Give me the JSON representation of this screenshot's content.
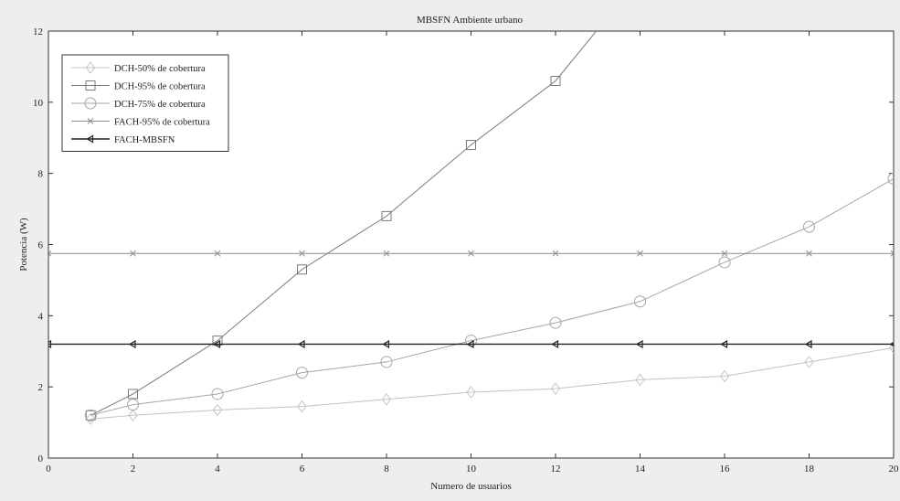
{
  "chart_data": {
    "type": "line",
    "title": "MBSFN Ambiente urbano",
    "xlabel": "Numero de usuarios",
    "ylabel": "Potencia (W)",
    "xlim": [
      0,
      20
    ],
    "ylim": [
      0,
      12
    ],
    "xticks": [
      0,
      2,
      4,
      6,
      8,
      10,
      12,
      14,
      16,
      18,
      20
    ],
    "yticks": [
      0,
      2,
      4,
      6,
      8,
      10,
      12
    ],
    "grid": false,
    "legend_position": "top-left",
    "series": [
      {
        "name": "DCH-50% de cobertura",
        "marker": "diamond",
        "color": "#c4c4c4",
        "x": [
          1,
          2,
          4,
          6,
          8,
          10,
          12,
          14,
          16,
          18,
          20
        ],
        "y": [
          1.1,
          1.2,
          1.35,
          1.45,
          1.65,
          1.85,
          1.95,
          2.2,
          2.3,
          2.7,
          3.1
        ]
      },
      {
        "name": "DCH-95% de cobertura",
        "marker": "square",
        "color": "#7a7a7a",
        "x": [
          1,
          2,
          4,
          6,
          8,
          10,
          12,
          14
        ],
        "y": [
          1.2,
          1.8,
          3.3,
          5.3,
          6.8,
          8.8,
          10.6,
          13.5
        ]
      },
      {
        "name": "DCH-75% de cobertura",
        "marker": "circle",
        "color": "#a6a6a6",
        "x": [
          1,
          2,
          4,
          6,
          8,
          10,
          12,
          14,
          16,
          18,
          20
        ],
        "y": [
          1.2,
          1.5,
          1.8,
          2.4,
          2.7,
          3.3,
          3.8,
          4.4,
          5.5,
          6.5,
          7.85
        ]
      },
      {
        "name": "FACH-95% de cobertura",
        "marker": "x",
        "color": "#8c8c8c",
        "x": [
          0,
          2,
          4,
          6,
          8,
          10,
          12,
          14,
          16,
          18,
          20
        ],
        "y": [
          5.75,
          5.75,
          5.75,
          5.75,
          5.75,
          5.75,
          5.75,
          5.75,
          5.75,
          5.75,
          5.75
        ]
      },
      {
        "name": "FACH-MBSFN",
        "marker": "triangle-left",
        "color": "#222222",
        "x": [
          0,
          2,
          4,
          6,
          8,
          10,
          12,
          14,
          16,
          18,
          20
        ],
        "y": [
          3.2,
          3.2,
          3.2,
          3.2,
          3.2,
          3.2,
          3.2,
          3.2,
          3.2,
          3.2,
          3.2
        ]
      }
    ]
  }
}
